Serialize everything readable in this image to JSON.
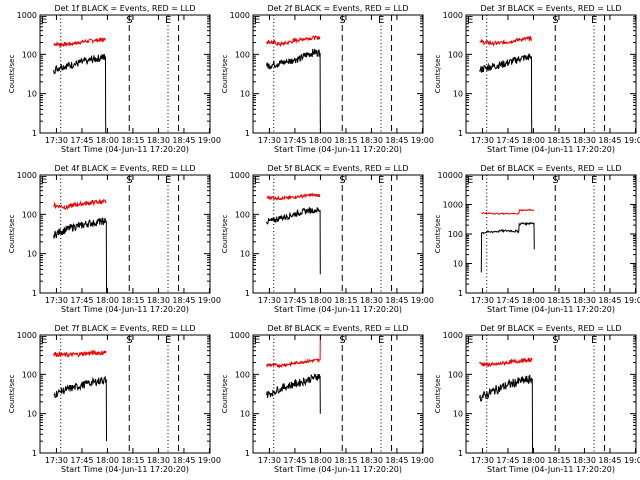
{
  "figure": {
    "background": "#ffffff"
  },
  "chart_data": {
    "type": "line",
    "title_template": "Det {n}f BLACK = Events, RED = LLD",
    "xlabel": "Start Time (04-Jun-11 17:20:20)",
    "ylabel": "Counts/sec",
    "y_scale": "log",
    "x_range_minutes_after_start": [
      0,
      100
    ],
    "xticks": [
      {
        "label": "17:30",
        "minute": 9.67
      },
      {
        "label": "17:45",
        "minute": 24.67
      },
      {
        "label": "18:00",
        "minute": 39.67
      },
      {
        "label": "18:15",
        "minute": 54.67
      },
      {
        "label": "18:30",
        "minute": 69.67
      },
      {
        "label": "18:45",
        "minute": 84.67
      },
      {
        "label": "19:00",
        "minute": 99.67
      }
    ],
    "markers": [
      {
        "label": "E",
        "minute": 0,
        "style": "dotted"
      },
      {
        "label": "",
        "minute": 12.2,
        "style": "dotted"
      },
      {
        "label": "S",
        "minute": 52.5,
        "style": "dashed"
      },
      {
        "label": "E",
        "minute": 75.3,
        "style": "dotted"
      },
      {
        "label": "",
        "minute": 81.5,
        "style": "dashed"
      }
    ],
    "series_colors": {
      "Events": "#000000",
      "LLD": "#ee0000"
    },
    "panels": [
      {
        "detector": "1",
        "ylim": [
          1,
          1000
        ],
        "yticks": [
          1,
          10,
          100,
          1000
        ],
        "ytick_labels": [
          "1",
          "10",
          "100",
          "1000"
        ],
        "series": [
          {
            "name": "LLD",
            "color": "#ee0000",
            "x": [
              8,
              12,
              16,
              20,
              24,
              28,
              32,
              36,
              38.5
            ],
            "y": [
              185,
              178,
              182,
              188,
              205,
              218,
              225,
              232,
              238
            ],
            "noise": 0.05
          },
          {
            "name": "Events",
            "color": "#000000",
            "x": [
              8,
              12,
              16,
              20,
              24,
              28,
              32,
              36,
              38.5,
              38.6,
              38.7
            ],
            "y": [
              40,
              48,
              52,
              55,
              62,
              68,
              76,
              82,
              88,
              2,
              1
            ],
            "noise": 0.1
          }
        ]
      },
      {
        "detector": "2",
        "ylim": [
          1,
          1000
        ],
        "yticks": [
          1,
          10,
          100,
          1000
        ],
        "ytick_labels": [
          "1",
          "10",
          "100",
          "1000"
        ],
        "series": [
          {
            "name": "LLD",
            "color": "#ee0000",
            "x": [
              8,
              12,
              16,
              20,
              24,
              28,
              32,
              36,
              39.5
            ],
            "y": [
              210,
              200,
              180,
              195,
              220,
              240,
              258,
              262,
              265
            ],
            "noise": 0.05
          },
          {
            "name": "Events",
            "color": "#000000",
            "x": [
              8,
              12,
              16,
              20,
              24,
              28,
              32,
              36,
              39.5,
              39.6,
              39.7
            ],
            "y": [
              50,
              56,
              60,
              64,
              72,
              80,
              100,
              112,
              108,
              2,
              1
            ],
            "noise": 0.1
          }
        ]
      },
      {
        "detector": "3",
        "ylim": [
          1,
          1000
        ],
        "yticks": [
          1,
          10,
          100,
          1000
        ],
        "ytick_labels": [
          "1",
          "10",
          "100",
          "1000"
        ],
        "series": [
          {
            "name": "LLD",
            "color": "#ee0000",
            "x": [
              8,
              12,
              16,
              20,
              24,
              28,
              32,
              36,
              38.5
            ],
            "y": [
              205,
              200,
              190,
              195,
              205,
              220,
              238,
              250,
              255
            ],
            "noise": 0.05
          },
          {
            "name": "Events",
            "color": "#000000",
            "x": [
              8,
              12,
              16,
              20,
              24,
              28,
              32,
              36,
              38.5,
              38.6,
              38.7
            ],
            "y": [
              40,
              46,
              50,
              54,
              60,
              68,
              78,
              84,
              88,
              2,
              1
            ],
            "noise": 0.1
          }
        ]
      },
      {
        "detector": "4",
        "ylim": [
          1,
          1000
        ],
        "yticks": [
          1,
          10,
          100,
          1000
        ],
        "ytick_labels": [
          "1",
          "10",
          "100",
          "1000"
        ],
        "series": [
          {
            "name": "LLD",
            "color": "#ee0000",
            "x": [
              8,
              12,
              16,
              20,
              24,
              28,
              32,
              36,
              39
            ],
            "y": [
              170,
              160,
              150,
              175,
              185,
              195,
              200,
              205,
              210
            ],
            "noise": 0.06
          },
          {
            "name": "Events",
            "color": "#000000",
            "x": [
              8,
              12,
              16,
              20,
              24,
              28,
              32,
              36,
              39,
              39.1,
              39.2
            ],
            "y": [
              30,
              36,
              42,
              48,
              52,
              58,
              62,
              66,
              68,
              2,
              1
            ],
            "noise": 0.1
          }
        ]
      },
      {
        "detector": "5",
        "ylim": [
          1,
          1000
        ],
        "yticks": [
          1,
          10,
          100,
          1000
        ],
        "ytick_labels": [
          "1",
          "10",
          "100",
          "1000"
        ],
        "series": [
          {
            "name": "LLD",
            "color": "#ee0000",
            "x": [
              8,
              12,
              16,
              20,
              24,
              28,
              32,
              36,
              39.5
            ],
            "y": [
              270,
              265,
              255,
              262,
              272,
              290,
              305,
              310,
              300
            ],
            "noise": 0.04
          },
          {
            "name": "Events",
            "color": "#000000",
            "x": [
              8,
              12,
              16,
              20,
              24,
              28,
              32,
              36,
              39.5,
              39.6
            ],
            "y": [
              65,
              70,
              80,
              88,
              100,
              112,
              122,
              130,
              128,
              3
            ],
            "noise": 0.08
          }
        ]
      },
      {
        "detector": "6",
        "ylim": [
          1,
          10000
        ],
        "yticks": [
          1,
          10,
          100,
          1000,
          10000
        ],
        "ytick_labels": [
          "1",
          "10",
          "100",
          "1000",
          "10000"
        ],
        "series": [
          {
            "name": "LLD",
            "color": "#ee0000",
            "x": [
              9,
              14,
              20,
              26,
              31,
              31.5,
              35,
              40
            ],
            "y": [
              520,
              500,
              490,
              495,
              490,
              640,
              645,
              650
            ],
            "noise": 0.02
          },
          {
            "name": "Events",
            "color": "#000000",
            "x": [
              9,
              9.2,
              14,
              20,
              26,
              31,
              31.3,
              36,
              40,
              40.2
            ],
            "y": [
              5,
              110,
              118,
              125,
              130,
              120,
              220,
              230,
              240,
              30
            ],
            "noise": 0.04
          }
        ]
      },
      {
        "detector": "7",
        "ylim": [
          1,
          1000
        ],
        "yticks": [
          1,
          10,
          100,
          1000
        ],
        "ytick_labels": [
          "1",
          "10",
          "100",
          "1000"
        ],
        "series": [
          {
            "name": "LLD",
            "color": "#ee0000",
            "x": [
              8,
              12,
              16,
              20,
              24,
              28,
              32,
              36,
              39
            ],
            "y": [
              330,
              320,
              310,
              318,
              330,
              345,
              350,
              355,
              360
            ],
            "noise": 0.06
          },
          {
            "name": "Events",
            "color": "#000000",
            "x": [
              8,
              12,
              16,
              20,
              24,
              28,
              32,
              36,
              39,
              39.1
            ],
            "y": [
              30,
              36,
              42,
              46,
              52,
              58,
              64,
              70,
              72,
              2
            ],
            "noise": 0.1
          }
        ]
      },
      {
        "detector": "8",
        "ylim": [
          1,
          1000
        ],
        "yticks": [
          1,
          10,
          100,
          1000
        ],
        "ytick_labels": [
          "1",
          "10",
          "100",
          "1000"
        ],
        "series": [
          {
            "name": "LLD",
            "color": "#ee0000",
            "x": [
              8,
              12,
              16,
              20,
              24,
              28,
              32,
              36,
              39.5,
              39.6
            ],
            "y": [
              175,
              172,
              168,
              178,
              190,
              205,
              215,
              225,
              235,
              1000
            ],
            "noise": 0.04
          },
          {
            "name": "Events",
            "color": "#000000",
            "x": [
              8,
              12,
              16,
              20,
              24,
              28,
              32,
              36,
              39.5,
              39.6
            ],
            "y": [
              30,
              36,
              44,
              50,
              56,
              62,
              72,
              84,
              92,
              10
            ],
            "noise": 0.1
          }
        ]
      },
      {
        "detector": "9",
        "ylim": [
          1,
          1000
        ],
        "yticks": [
          1,
          10,
          100,
          1000
        ],
        "ytick_labels": [
          "1",
          "10",
          "100",
          "1000"
        ],
        "series": [
          {
            "name": "LLD",
            "color": "#ee0000",
            "x": [
              8,
              12,
              16,
              20,
              24,
              28,
              32,
              36,
              39
            ],
            "y": [
              190,
              180,
              175,
              185,
              200,
              210,
              220,
              228,
              235
            ],
            "noise": 0.05
          },
          {
            "name": "Events",
            "color": "#000000",
            "x": [
              8,
              12,
              16,
              20,
              24,
              28,
              32,
              36,
              39,
              39.1,
              39.2
            ],
            "y": [
              25,
              30,
              38,
              45,
              52,
              60,
              66,
              72,
              76,
              2,
              1
            ],
            "noise": 0.12
          }
        ]
      }
    ]
  }
}
